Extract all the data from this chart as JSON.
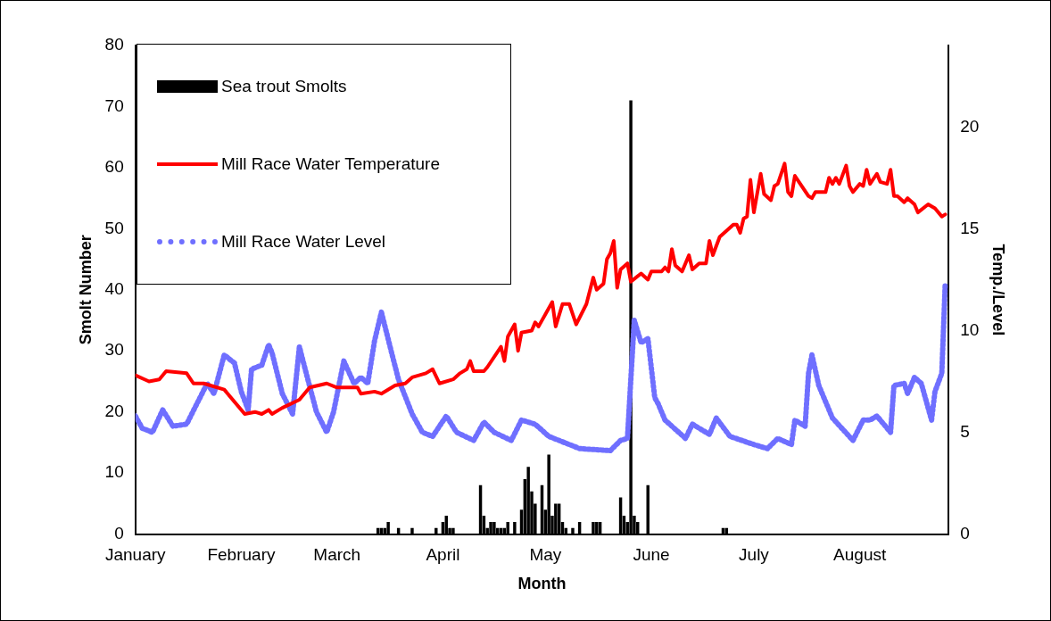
{
  "chart_data": {
    "type": "line",
    "xlabel": "Month",
    "ylabel": "Smolt Number",
    "y2label": "Temp./Level",
    "legend": "top left",
    "xlim": [
      "--01-01",
      "--08-27"
    ],
    "xticks": [
      {
        "value": "--01-01",
        "label": "January"
      },
      {
        "value": "--02-01",
        "label": "February"
      },
      {
        "value": "--03-01",
        "label": "March"
      },
      {
        "value": "--04-01",
        "label": "April"
      },
      {
        "value": "--05-01",
        "label": "May"
      },
      {
        "value": "--06-01",
        "label": "June"
      },
      {
        "value": "--07-01",
        "label": "July"
      },
      {
        "value": "--08-01",
        "label": "August"
      }
    ],
    "ylim": [
      0,
      80
    ],
    "yticks": [
      0,
      10,
      20,
      30,
      40,
      50,
      60,
      70,
      80
    ],
    "y2lim": [
      0,
      24
    ],
    "y2ticks": [
      0,
      5,
      10,
      15,
      20
    ],
    "series": [
      {
        "name": "Sea trout Smolts",
        "type": "bar",
        "axis": "y",
        "color": "#000000",
        "x": [
          "--03-13",
          "--03-14",
          "--03-15",
          "--03-16",
          "--03-19",
          "--03-23",
          "--03-30",
          "--04-01",
          "--04-02",
          "--04-03",
          "--04-04",
          "--04-12",
          "--04-13",
          "--04-14",
          "--04-15",
          "--04-16",
          "--04-17",
          "--04-18",
          "--04-19",
          "--04-20",
          "--04-22",
          "--04-24",
          "--04-25",
          "--04-26",
          "--04-27",
          "--04-28",
          "--04-30",
          "--05-01",
          "--05-02",
          "--05-03",
          "--05-04",
          "--05-05",
          "--05-06",
          "--05-07",
          "--05-09",
          "--05-11",
          "--05-15",
          "--05-16",
          "--05-17",
          "--05-23",
          "--05-24",
          "--05-25",
          "--05-26",
          "--05-27",
          "--05-28",
          "--05-31",
          "--06-22",
          "--06-23"
        ],
        "values": [
          1,
          1,
          1,
          2,
          1,
          1,
          1,
          2,
          3,
          1,
          1,
          8,
          3,
          1,
          2,
          2,
          1,
          1,
          1,
          2,
          2,
          4,
          9,
          11,
          7,
          5,
          8,
          4,
          13,
          3,
          5,
          5,
          2,
          1,
          1,
          2,
          2,
          2,
          2,
          6,
          3,
          2,
          71,
          3,
          2,
          8,
          1,
          1
        ]
      },
      {
        "name": "Mill Race Water Temperature",
        "axis": "y2",
        "color": "#ff0000",
        "line_style": "solid",
        "x": [
          "--01-01",
          "--01-05",
          "--01-08",
          "--01-10",
          "--01-16",
          "--01-18",
          "--01-21",
          "--01-27",
          "--02-02",
          "--02-05",
          "--02-07",
          "--02-09",
          "--02-10",
          "--02-13",
          "--02-18",
          "--02-21",
          "--02-26",
          "--03-01",
          "--03-07",
          "--03-08",
          "--03-12",
          "--03-14",
          "--03-18",
          "--03-21",
          "--03-23",
          "--03-27",
          "--03-29",
          "--03-31",
          "--04-04",
          "--04-06",
          "--04-08",
          "--04-09",
          "--04-10",
          "--04-13",
          "--04-14",
          "--04-18",
          "--04-19",
          "--04-20",
          "--04-22",
          "--04-23",
          "--04-24",
          "--04-27",
          "--04-28",
          "--04-29",
          "--05-03",
          "--05-04",
          "--05-06",
          "--05-08",
          "--05-10",
          "--05-13",
          "--05-15",
          "--05-16",
          "--05-18",
          "--05-19",
          "--05-20",
          "--05-21",
          "--05-22",
          "--05-23",
          "--05-25",
          "--05-26",
          "--05-29",
          "--05-31",
          "--06-01",
          "--06-04",
          "--06-05",
          "--06-06",
          "--06-07",
          "--06-08",
          "--06-10",
          "--06-12",
          "--06-13",
          "--06-15",
          "--06-17",
          "--06-18",
          "--06-19",
          "--06-21",
          "--06-25",
          "--06-26",
          "--06-27",
          "--06-28",
          "--06-29",
          "--06-30",
          "--07-01",
          "--07-03",
          "--07-04",
          "--07-06",
          "--07-07",
          "--07-08",
          "--07-10",
          "--07-11",
          "--07-12",
          "--07-13",
          "--07-17",
          "--07-18",
          "--07-19",
          "--07-22",
          "--07-23",
          "--07-24",
          "--07-25",
          "--07-26",
          "--07-28",
          "--07-29",
          "--07-30",
          "--08-01",
          "--08-02",
          "--08-03",
          "--08-04",
          "--08-06",
          "--08-07",
          "--08-09",
          "--08-10",
          "--08-11",
          "--08-12",
          "--08-14",
          "--08-15",
          "--08-17",
          "--08-18",
          "--08-21",
          "--08-23",
          "--08-25",
          "--08-26"
        ],
        "values": [
          7.8,
          7.5,
          7.6,
          8.0,
          7.9,
          7.4,
          7.4,
          7.1,
          5.9,
          6.0,
          5.9,
          6.1,
          5.9,
          6.2,
          6.6,
          7.2,
          7.4,
          7.2,
          7.2,
          6.9,
          7.0,
          6.9,
          7.3,
          7.4,
          7.7,
          7.9,
          8.1,
          7.4,
          7.6,
          7.9,
          8.1,
          8.5,
          8.0,
          8.0,
          8.2,
          9.2,
          8.5,
          9.7,
          10.3,
          9.0,
          9.9,
          10.0,
          10.4,
          10.2,
          11.4,
          10.2,
          11.3,
          11.3,
          10.3,
          11.3,
          12.6,
          12.0,
          12.3,
          13.5,
          13.8,
          14.4,
          12.1,
          13.0,
          13.3,
          12.4,
          12.8,
          12.5,
          12.9,
          12.9,
          13.1,
          12.9,
          14.0,
          13.2,
          12.9,
          13.7,
          13.0,
          13.3,
          13.3,
          14.4,
          13.7,
          14.6,
          15.2,
          15.2,
          14.8,
          15.5,
          15.6,
          17.4,
          15.8,
          17.7,
          16.7,
          16.4,
          17.1,
          17.2,
          18.2,
          16.8,
          16.6,
          17.6,
          16.6,
          16.5,
          16.8,
          16.8,
          17.5,
          17.2,
          17.5,
          17.2,
          18.1,
          17.1,
          16.8,
          17.2,
          17.1,
          17.9,
          17.2,
          17.7,
          17.3,
          17.2,
          17.9,
          16.6,
          16.6,
          16.3,
          16.5,
          16.2,
          15.8,
          16.2,
          16.0,
          15.6,
          15.7
        ]
      },
      {
        "name": "Mill Race Water Level",
        "axis": "y2",
        "color": "#6f6fff",
        "line_style": "dotted",
        "x": [
          "--01-01",
          "--01-03",
          "--01-06",
          "--01-09",
          "--01-12",
          "--01-16",
          "--01-19",
          "--01-22",
          "--01-24",
          "--01-27",
          "--01-30",
          "--02-01",
          "--02-03",
          "--02-04",
          "--02-07",
          "--02-09",
          "--02-10",
          "--02-13",
          "--02-16",
          "--02-18",
          "--02-20",
          "--02-23",
          "--02-26",
          "--02-28",
          "--03-03",
          "--03-06",
          "--03-08",
          "--03-10",
          "--03-12",
          "--03-14",
          "--03-17",
          "--03-19",
          "--03-23",
          "--03-26",
          "--03-29",
          "--04-02",
          "--04-05",
          "--04-10",
          "--04-13",
          "--04-16",
          "--04-21",
          "--04-24",
          "--04-28",
          "--05-02",
          "--05-11",
          "--05-20",
          "--05-23",
          "--05-25",
          "--05-27",
          "--05-29",
          "--05-31",
          "--06-02",
          "--06-03",
          "--06-05",
          "--06-11",
          "--06-13",
          "--06-18",
          "--06-20",
          "--06-24",
          "--07-01",
          "--07-05",
          "--07-08",
          "--07-12",
          "--07-13",
          "--07-16",
          "--07-17",
          "--07-18",
          "--07-20",
          "--07-24",
          "--07-30",
          "--08-02",
          "--08-04",
          "--08-06",
          "--08-10",
          "--08-11",
          "--08-14",
          "--08-15",
          "--08-17",
          "--08-19",
          "--08-22",
          "--08-23",
          "--08-25",
          "--08-26"
        ],
        "values": [
          5.8,
          5.2,
          5.0,
          6.1,
          5.3,
          5.4,
          6.4,
          7.4,
          6.9,
          8.8,
          8.4,
          7.0,
          6.1,
          8.1,
          8.3,
          9.3,
          8.9,
          6.9,
          5.9,
          9.2,
          7.9,
          6.0,
          5.0,
          6.0,
          8.5,
          7.4,
          7.7,
          7.4,
          9.5,
          10.9,
          8.9,
          7.6,
          5.9,
          5.0,
          4.8,
          5.8,
          5.0,
          4.6,
          5.5,
          5.0,
          4.6,
          5.6,
          5.4,
          4.8,
          4.2,
          4.1,
          4.6,
          4.7,
          10.5,
          9.4,
          9.6,
          6.7,
          6.4,
          5.6,
          4.7,
          5.4,
          4.9,
          5.7,
          4.8,
          4.4,
          4.2,
          4.7,
          4.4,
          5.6,
          5.3,
          7.9,
          8.8,
          7.3,
          5.7,
          4.6,
          5.6,
          5.6,
          5.8,
          5.0,
          7.3,
          7.4,
          6.9,
          7.7,
          7.4,
          5.6,
          7.0,
          7.9,
          12.3
        ]
      }
    ]
  }
}
